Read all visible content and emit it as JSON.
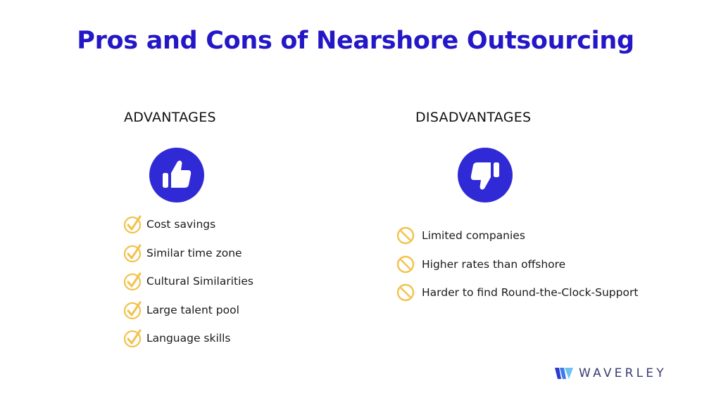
{
  "title": "Pros and Cons of Nearshore Outsourcing",
  "advantages": {
    "heading": "ADVANTAGES",
    "icon": "thumbs-up-icon",
    "items": [
      "Cost savings",
      "Similar time zone",
      "Cultural Similarities",
      "Large talent pool",
      "Language skills"
    ]
  },
  "disadvantages": {
    "heading": "DISADVANTAGES",
    "icon": "thumbs-down-icon",
    "items": [
      "Limited companies",
      "Higher rates than offshore",
      "Harder to find Round-the-Clock-Support"
    ]
  },
  "logo": {
    "text": "WAVERLEY",
    "icon": "waverley-logo-icon"
  },
  "colors": {
    "title": "#2317c7",
    "icon_bg": "#2f2ad6",
    "marker": "#f2c24a",
    "logo_text": "#3b3b74"
  }
}
